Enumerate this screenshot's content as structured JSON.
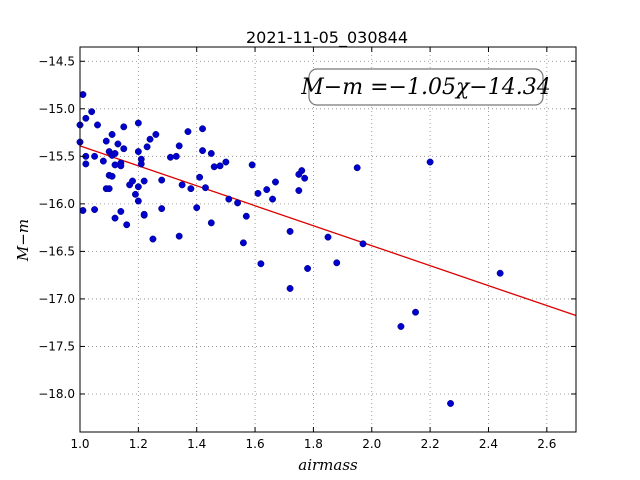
{
  "chart_data": {
    "type": "scatter",
    "title": "2021-11-05_030844",
    "xlabel": "airmass",
    "ylabel": "M−m",
    "xlim": [
      1.0,
      2.7
    ],
    "ylim": [
      -18.4,
      -14.35
    ],
    "y_inverted": true,
    "grid": true,
    "x_ticks": [
      "1.0",
      "1.2",
      "1.4",
      "1.6",
      "1.8",
      "2.0",
      "2.2",
      "2.4",
      "2.6"
    ],
    "y_ticks": [
      "−14.5",
      "−15.0",
      "−15.5",
      "−16.0",
      "−16.5",
      "−17.0",
      "−17.5",
      "−18.0"
    ],
    "annotation": "M−m =−1.05χ−14.34",
    "colors": {
      "points": "#0000cc",
      "fit_line": "#dd0000",
      "grid": "#888888"
    },
    "fit": {
      "slope": -1.05,
      "intercept": -14.34
    },
    "points": [
      [
        1.0,
        -15.17
      ],
      [
        1.0,
        -15.35
      ],
      [
        1.01,
        -16.07
      ],
      [
        1.01,
        -14.85
      ],
      [
        1.02,
        -15.1
      ],
      [
        1.02,
        -15.5
      ],
      [
        1.02,
        -15.58
      ],
      [
        1.04,
        -15.03
      ],
      [
        1.05,
        -15.5
      ],
      [
        1.05,
        -16.06
      ],
      [
        1.06,
        -15.17
      ],
      [
        1.08,
        -15.55
      ],
      [
        1.09,
        -15.84
      ],
      [
        1.09,
        -15.34
      ],
      [
        1.1,
        -15.45
      ],
      [
        1.1,
        -15.84
      ],
      [
        1.1,
        -15.7
      ],
      [
        1.11,
        -15.27
      ],
      [
        1.11,
        -15.49
      ],
      [
        1.11,
        -15.71
      ],
      [
        1.12,
        -16.15
      ],
      [
        1.12,
        -15.59
      ],
      [
        1.12,
        -15.47
      ],
      [
        1.13,
        -15.37
      ],
      [
        1.14,
        -15.57
      ],
      [
        1.14,
        -15.6
      ],
      [
        1.14,
        -16.08
      ],
      [
        1.15,
        -15.19
      ],
      [
        1.15,
        -15.42
      ],
      [
        1.16,
        -16.22
      ],
      [
        1.17,
        -15.8
      ],
      [
        1.18,
        -15.76
      ],
      [
        1.19,
        -15.9
      ],
      [
        1.2,
        -15.15
      ],
      [
        1.2,
        -15.45
      ],
      [
        1.2,
        -15.82
      ],
      [
        1.2,
        -15.97
      ],
      [
        1.21,
        -15.53
      ],
      [
        1.21,
        -15.58
      ],
      [
        1.22,
        -16.12
      ],
      [
        1.22,
        -15.76
      ],
      [
        1.22,
        -16.11
      ],
      [
        1.23,
        -15.4
      ],
      [
        1.24,
        -15.32
      ],
      [
        1.25,
        -16.37
      ],
      [
        1.26,
        -15.27
      ],
      [
        1.28,
        -15.75
      ],
      [
        1.28,
        -16.05
      ],
      [
        1.31,
        -15.51
      ],
      [
        1.33,
        -15.5
      ],
      [
        1.34,
        -15.39
      ],
      [
        1.34,
        -16.34
      ],
      [
        1.35,
        -15.8
      ],
      [
        1.37,
        -15.24
      ],
      [
        1.38,
        -15.84
      ],
      [
        1.4,
        -16.04
      ],
      [
        1.41,
        -15.72
      ],
      [
        1.42,
        -15.21
      ],
      [
        1.42,
        -15.44
      ],
      [
        1.43,
        -15.83
      ],
      [
        1.45,
        -16.2
      ],
      [
        1.45,
        -15.47
      ],
      [
        1.46,
        -15.61
      ],
      [
        1.48,
        -15.6
      ],
      [
        1.5,
        -15.56
      ],
      [
        1.51,
        -15.95
      ],
      [
        1.54,
        -15.99
      ],
      [
        1.56,
        -16.41
      ],
      [
        1.57,
        -16.13
      ],
      [
        1.59,
        -15.59
      ],
      [
        1.61,
        -15.89
      ],
      [
        1.62,
        -16.63
      ],
      [
        1.64,
        -15.85
      ],
      [
        1.66,
        -15.95
      ],
      [
        1.67,
        -15.77
      ],
      [
        1.72,
        -16.29
      ],
      [
        1.72,
        -16.89
      ],
      [
        1.75,
        -15.86
      ],
      [
        1.75,
        -15.69
      ],
      [
        1.76,
        -15.65
      ],
      [
        1.77,
        -15.73
      ],
      [
        1.78,
        -16.68
      ],
      [
        1.85,
        -16.35
      ],
      [
        1.88,
        -16.62
      ],
      [
        1.95,
        -15.62
      ],
      [
        1.97,
        -16.42
      ],
      [
        2.1,
        -17.29
      ],
      [
        2.15,
        -17.14
      ],
      [
        2.2,
        -15.56
      ],
      [
        2.27,
        -18.1
      ],
      [
        2.44,
        -16.73
      ]
    ]
  }
}
